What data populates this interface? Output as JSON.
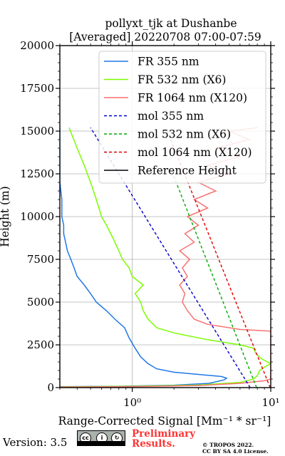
{
  "chart_data": {
    "type": "line",
    "title_line1": "pollyxt_tjk at Dushanbe",
    "title_line2": "[Averaged] 20220708 07:00-07:59",
    "xlabel": "Range-Corrected Signal [Mm⁻¹ * sr⁻¹]",
    "ylabel": "Height (m)",
    "x_scale": "log",
    "xlim": [
      0.3,
      10
    ],
    "ylim": [
      0,
      20000
    ],
    "x_ticks": [
      {
        "value": 1,
        "label": "10⁰"
      },
      {
        "value": 10,
        "label": "10¹"
      }
    ],
    "y_ticks": [
      0,
      2500,
      5000,
      7500,
      10000,
      12500,
      15000,
      17500,
      20000
    ],
    "grid": true,
    "legend_position": "top-right",
    "series": [
      {
        "name": "FR 355 nm",
        "color": "#1f77e8",
        "style": "solid",
        "points": [
          [
            0.3,
            50
          ],
          [
            0.8,
            80
          ],
          [
            2.0,
            140
          ],
          [
            3.6,
            250
          ],
          [
            4.6,
            450
          ],
          [
            4.8,
            550
          ],
          [
            4.4,
            650
          ],
          [
            3.2,
            750
          ],
          [
            2.0,
            900
          ],
          [
            1.5,
            1100
          ],
          [
            1.3,
            1400
          ],
          [
            1.15,
            1800
          ],
          [
            1.05,
            2300
          ],
          [
            0.95,
            2900
          ],
          [
            0.88,
            3500
          ],
          [
            0.75,
            4000
          ],
          [
            0.65,
            4500
          ],
          [
            0.55,
            5000
          ],
          [
            0.5,
            5500
          ],
          [
            0.45,
            6000
          ],
          [
            0.4,
            6500
          ],
          [
            0.38,
            7000
          ],
          [
            0.36,
            7500
          ],
          [
            0.34,
            8000
          ],
          [
            0.33,
            8500
          ],
          [
            0.32,
            9000
          ],
          [
            0.32,
            9500
          ],
          [
            0.31,
            10000
          ],
          [
            0.31,
            11000
          ],
          [
            0.3,
            12000
          ],
          [
            0.3,
            13000
          ],
          [
            0.3,
            14000
          ],
          [
            0.3,
            15200
          ]
        ]
      },
      {
        "name": "FR 532 nm (X6)",
        "color": "#7cfc00",
        "style": "solid",
        "points": [
          [
            0.3,
            40
          ],
          [
            1.0,
            80
          ],
          [
            3.0,
            150
          ],
          [
            6.0,
            300
          ],
          [
            7.5,
            500
          ],
          [
            8.0,
            700
          ],
          [
            8.3,
            1000
          ],
          [
            9.0,
            1200
          ],
          [
            10,
            1400
          ],
          [
            8.5,
            1700
          ],
          [
            7.8,
            2000
          ],
          [
            7.5,
            2300
          ],
          [
            6.0,
            2500
          ],
          [
            3.5,
            2800
          ],
          [
            2.0,
            3200
          ],
          [
            1.5,
            3500
          ],
          [
            1.3,
            4000
          ],
          [
            1.2,
            4500
          ],
          [
            1.15,
            5000
          ],
          [
            1.05,
            5500
          ],
          [
            1.2,
            6000
          ],
          [
            1.0,
            6500
          ],
          [
            0.95,
            7000
          ],
          [
            0.85,
            7500
          ],
          [
            0.8,
            8000
          ],
          [
            0.75,
            8500
          ],
          [
            0.7,
            9000
          ],
          [
            0.65,
            9500
          ],
          [
            0.6,
            10000
          ],
          [
            0.55,
            11000
          ],
          [
            0.5,
            12000
          ],
          [
            0.45,
            13000
          ],
          [
            0.4,
            14000
          ],
          [
            0.35,
            15200
          ]
        ]
      },
      {
        "name": "FR 1064 nm (X120)",
        "color": "#f87171",
        "style": "solid",
        "points": [
          [
            0.3,
            30
          ],
          [
            1.0,
            60
          ],
          [
            3.0,
            120
          ],
          [
            6.0,
            250
          ],
          [
            9.0,
            400
          ],
          [
            10,
            500
          ],
          [
            10,
            3300
          ],
          [
            6.0,
            3400
          ],
          [
            3.5,
            3700
          ],
          [
            2.8,
            4000
          ],
          [
            2.5,
            4500
          ],
          [
            2.3,
            5000
          ],
          [
            2.4,
            5500
          ],
          [
            2.2,
            6000
          ],
          [
            2.5,
            6500
          ],
          [
            2.3,
            7000
          ],
          [
            2.6,
            7500
          ],
          [
            2.2,
            8000
          ],
          [
            2.8,
            8500
          ],
          [
            2.4,
            9000
          ],
          [
            3.0,
            9500
          ],
          [
            2.5,
            10000
          ],
          [
            3.5,
            10500
          ],
          [
            2.8,
            11000
          ],
          [
            4.0,
            11500
          ],
          [
            3.0,
            12000
          ],
          [
            5.0,
            12500
          ],
          [
            3.5,
            13000
          ],
          [
            6.0,
            13500
          ],
          [
            4.0,
            14000
          ],
          [
            7.0,
            14500
          ],
          [
            5.0,
            15000
          ],
          [
            8.0,
            15200
          ]
        ]
      },
      {
        "name": "mol 355 nm",
        "color": "#0000cc",
        "style": "dashed",
        "points": [
          [
            7.1,
            0
          ],
          [
            0.5,
            15200
          ]
        ]
      },
      {
        "name": "mol 532 nm (X6)",
        "color": "#00aa00",
        "style": "dashed",
        "points": [
          [
            7.9,
            0
          ],
          [
            1.9,
            12800
          ]
        ]
      },
      {
        "name": "mol 1064 nm (X120)",
        "color": "#e00000",
        "style": "dashed",
        "points": [
          [
            9.9,
            0
          ],
          [
            1.75,
            15200
          ]
        ]
      },
      {
        "name": "Reference Height",
        "color": "#000000",
        "style": "solid",
        "points": []
      }
    ]
  },
  "footer": {
    "version": "Version: 3.5",
    "cc_badge_text": "BY SA",
    "preliminary": "Preliminary",
    "results": "Results.",
    "copyright_line1": "© TROPOS 2022.",
    "copyright_line2": "CC BY SA 4.0 License."
  }
}
